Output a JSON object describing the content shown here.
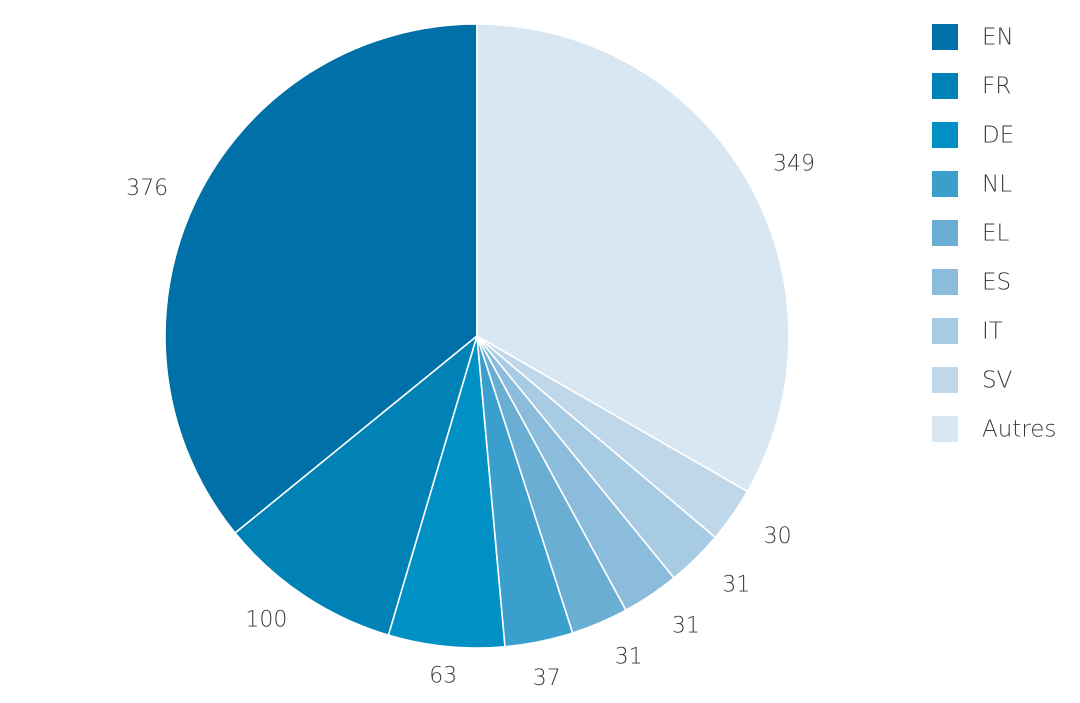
{
  "chart_data": {
    "type": "pie",
    "slices": [
      {
        "label": "EN",
        "value": 376,
        "color": "#0070a8"
      },
      {
        "label": "FR",
        "value": 100,
        "color": "#0082b6"
      },
      {
        "label": "DE",
        "value": 63,
        "color": "#0090c3"
      },
      {
        "label": "NL",
        "value": 37,
        "color": "#3a9fcc"
      },
      {
        "label": "EL",
        "value": 31,
        "color": "#6aaed3"
      },
      {
        "label": "ES",
        "value": 31,
        "color": "#8cbcdb"
      },
      {
        "label": "IT",
        "value": 31,
        "color": "#a8cbe4"
      },
      {
        "label": "SV",
        "value": 30,
        "color": "#c0d7ea"
      },
      {
        "label": "Autres",
        "value": 349,
        "color": "#d9e7f3"
      }
    ],
    "start_angle": "12 o'clock",
    "direction": "counter-clockwise",
    "legend_position": "top-right"
  }
}
